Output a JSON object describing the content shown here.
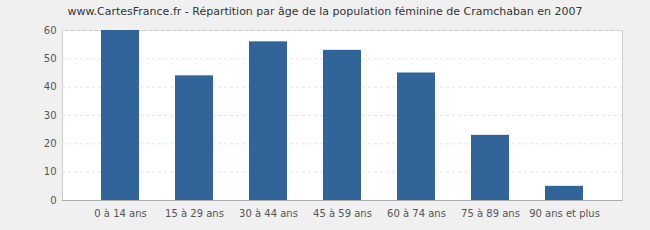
{
  "chart_data": {
    "type": "bar",
    "title": "www.CartesFrance.fr - Répartition par âge de la population féminine de Cramchaban en 2007",
    "categories": [
      "0 à 14 ans",
      "15 à 29 ans",
      "30 à 44 ans",
      "45 à 59 ans",
      "60 à 74 ans",
      "75 à 89 ans",
      "90 ans et plus"
    ],
    "values": [
      60,
      44,
      56,
      53,
      45,
      23,
      5
    ],
    "color": "#31659a",
    "ylim": [
      0,
      60
    ],
    "yticks": [
      0,
      10,
      20,
      30,
      40,
      50,
      60
    ],
    "grid": true
  }
}
